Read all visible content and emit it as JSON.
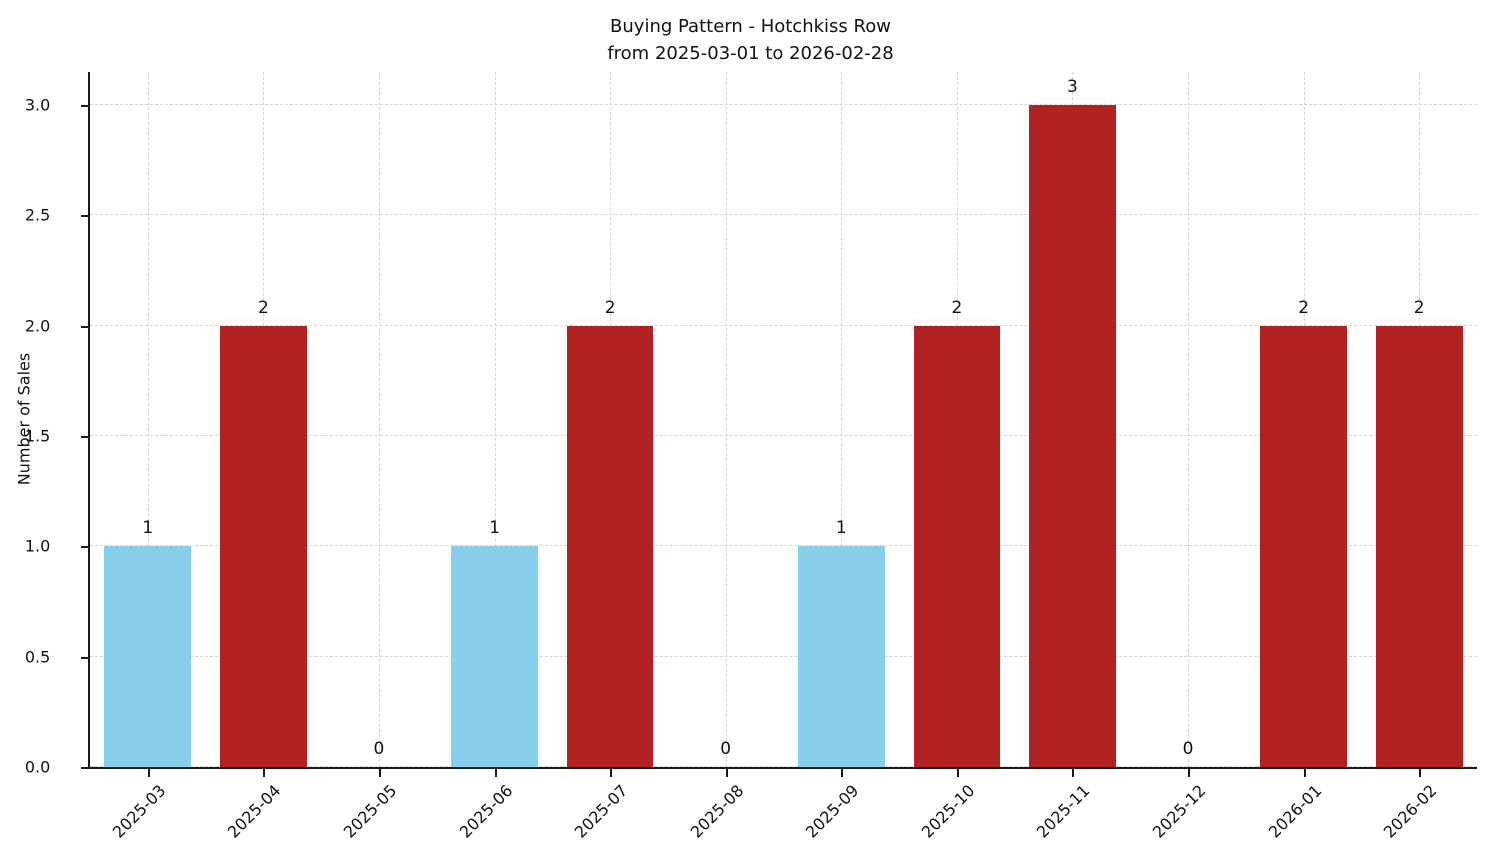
{
  "figure": {
    "title_line1": "Buying Pattern - Hotchkiss Row",
    "title_line2": "from 2025-03-01 to 2026-02-28",
    "ylabel": "Number of Sales"
  },
  "chart_data": {
    "type": "bar",
    "title": "Buying Pattern - Hotchkiss Row\nfrom 2025-03-01 to 2026-02-28",
    "xlabel": "",
    "ylabel": "Number of Sales",
    "categories": [
      "2025-03",
      "2025-04",
      "2025-05",
      "2025-06",
      "2025-07",
      "2025-08",
      "2025-09",
      "2025-10",
      "2025-11",
      "2025-12",
      "2026-01",
      "2026-02"
    ],
    "values": [
      1,
      2,
      0,
      1,
      2,
      0,
      1,
      2,
      3,
      0,
      2,
      2
    ],
    "bar_labels": [
      "1",
      "2",
      "0",
      "1",
      "2",
      "0",
      "1",
      "2",
      "3",
      "0",
      "2",
      "2"
    ],
    "bar_colors": [
      "#87ceeb",
      "#b22222",
      "#b22222",
      "#87ceeb",
      "#b22222",
      "#b22222",
      "#87ceeb",
      "#b22222",
      "#b22222",
      "#b22222",
      "#b22222",
      "#b22222"
    ],
    "ylim": [
      0,
      3.15
    ],
    "yticks": [
      0.0,
      0.5,
      1.0,
      1.5,
      2.0,
      2.5,
      3.0
    ],
    "ytick_labels": [
      "0.0",
      "0.5",
      "1.0",
      "1.5",
      "2.0",
      "2.5",
      "3.0"
    ],
    "grid": {
      "style": "dashed",
      "color": "#d6d6d6",
      "horizontal": true,
      "vertical": true
    },
    "legend": null
  },
  "colors": {
    "bar_blue": "#87ceeb",
    "bar_red": "#b22222",
    "axis": "#1a1a1a",
    "grid": "#d6d6d6",
    "text": "#111111",
    "background": "#ffffff"
  }
}
